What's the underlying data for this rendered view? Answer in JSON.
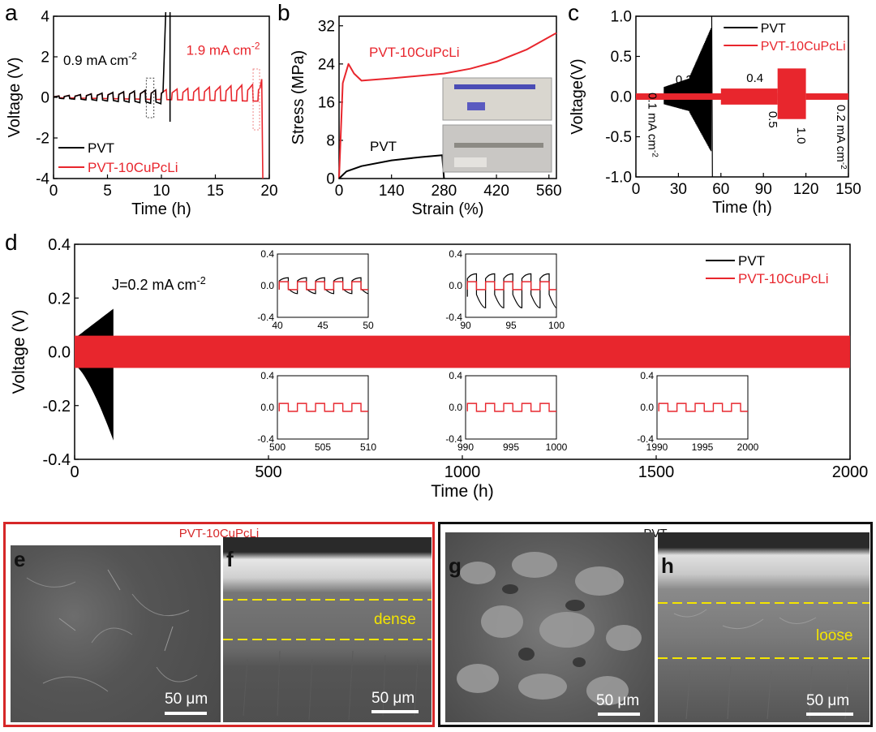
{
  "panels": {
    "a": {
      "letter": "a",
      "xlabel": "Time (h)",
      "ylabel": "Voltage (V)",
      "xticks": [
        "0",
        "5",
        "10",
        "15",
        "20"
      ],
      "yticks": [
        "4",
        "2",
        "0",
        "-2",
        "-4"
      ],
      "annot_black": "0.9 mA cm",
      "annot_black_sup": "-2",
      "annot_red": "1.9 mA cm",
      "annot_red_sup": "-2",
      "legend": [
        "PVT",
        "PVT-10CuPcLi"
      ]
    },
    "b": {
      "letter": "b",
      "xlabel": "Strain (%)",
      "ylabel": "Stress (MPa)",
      "xticks": [
        "0",
        "140",
        "280",
        "420",
        "560"
      ],
      "yticks": [
        "32",
        "24",
        "16",
        "8",
        "0"
      ],
      "label_red": "PVT-10CuPcLi",
      "label_black": "PVT"
    },
    "c": {
      "letter": "c",
      "xlabel": "Time (h)",
      "ylabel": "Voltage(V)",
      "xticks": [
        "0",
        "30",
        "60",
        "90",
        "120",
        "150"
      ],
      "yticks": [
        "1.0",
        "0.5",
        "0.0",
        "-0.5",
        "-1.0"
      ],
      "legend": [
        "PVT",
        "PVT-10CuPcLi"
      ],
      "annots": [
        "0.1 mA cm",
        "0.2",
        "0.3",
        "0.4",
        "0.5",
        "1.0",
        "0.2 mA cm"
      ],
      "annot_sup": "-2"
    },
    "d": {
      "letter": "d",
      "xlabel": "Time (h)",
      "ylabel": "Voltage (V)",
      "xticks": [
        "0",
        "500",
        "1000",
        "1500",
        "2000"
      ],
      "yticks": [
        "0.4",
        "0.2",
        "0.0",
        "-0.2",
        "-0.4"
      ],
      "annot": "J=0.2 mA cm",
      "annot_sup": "-2",
      "legend": [
        "PVT",
        "PVT-10CuPcLi"
      ],
      "inset_yticks": [
        "0.4",
        "0.0",
        "-0.4"
      ],
      "insets": [
        {
          "xticks": [
            "40",
            "45",
            "50"
          ]
        },
        {
          "xticks": [
            "90",
            "95",
            "100"
          ]
        },
        {
          "xticks": [
            "500",
            "505",
            "510"
          ]
        },
        {
          "xticks": [
            "990",
            "995",
            "1000"
          ]
        },
        {
          "xticks": [
            "1990",
            "1995",
            "2000"
          ]
        }
      ]
    }
  },
  "sem": {
    "left_title": "PVT-10CuPcLi",
    "right_title": "PVT",
    "left_color": "#d62728",
    "right_color": "#111111",
    "e": {
      "letter": "e",
      "scale": "50 μm"
    },
    "f": {
      "letter": "f",
      "scale": "50 μm",
      "layer": "dense"
    },
    "g": {
      "letter": "g",
      "scale": "50 μm"
    },
    "h": {
      "letter": "h",
      "scale": "50 μm",
      "layer": "loose"
    }
  },
  "chart_data": [
    {
      "type": "line",
      "title": "",
      "xlabel": "Time (h)",
      "ylabel": "Voltage (V)",
      "xlim": [
        0,
        20
      ],
      "ylim": [
        -4,
        4
      ],
      "series": [
        {
          "name": "PVT",
          "color": "#000000",
          "x": [
            0,
            2,
            4,
            6,
            8,
            9,
            10,
            10.6
          ],
          "y": [
            0.05,
            0.1,
            0.15,
            0.2,
            0.3,
            0.4,
            0.6,
            4
          ]
        },
        {
          "name": "PVT-10CuPcLi",
          "color": "#e8262d",
          "x": [
            0,
            5,
            10,
            15,
            18,
            19.2,
            19.4
          ],
          "y": [
            0.05,
            0.15,
            0.4,
            0.5,
            0.65,
            0.9,
            -4
          ]
        }
      ],
      "annotations": [
        "0.9 mA cm-2",
        "1.9 mA cm-2"
      ]
    },
    {
      "type": "line",
      "title": "",
      "xlabel": "Strain (%)",
      "ylabel": "Stress (MPa)",
      "xlim": [
        0,
        580
      ],
      "ylim": [
        0,
        34
      ],
      "series": [
        {
          "name": "PVT-10CuPcLi",
          "color": "#e8262d",
          "x": [
            0,
            10,
            25,
            40,
            60,
            140,
            280,
            350,
            420,
            500,
            580
          ],
          "y": [
            0,
            20,
            24,
            22,
            20.5,
            21,
            22,
            23,
            24.5,
            27,
            30.5
          ]
        },
        {
          "name": "PVT",
          "color": "#000000",
          "x": [
            0,
            20,
            60,
            140,
            220,
            275,
            280
          ],
          "y": [
            0,
            1.5,
            2.6,
            3.8,
            4.5,
            4.9,
            0
          ]
        }
      ]
    },
    {
      "type": "line",
      "title": "",
      "xlabel": "Time (h)",
      "ylabel": "Voltage(V)",
      "xlim": [
        0,
        150
      ],
      "ylim": [
        -1.0,
        1.0
      ],
      "series": [
        {
          "name": "PVT",
          "color": "#000000",
          "x": [
            0,
            20,
            40,
            53,
            54
          ],
          "y": [
            0.03,
            0.1,
            0.25,
            0.6,
            -1.0
          ]
        },
        {
          "name": "PVT-10CuPcLi",
          "color": "#e8262d",
          "x": [
            0,
            30,
            60,
            100,
            120,
            150
          ],
          "y": [
            0.02,
            0.05,
            0.08,
            0.1,
            0.35,
            0.05
          ]
        }
      ],
      "annotations": [
        "0.1 mA cm-2",
        "0.2",
        "0.3",
        "0.4",
        "0.5",
        "1.0",
        "0.2 mA cm-2"
      ]
    },
    {
      "type": "area",
      "title": "",
      "xlabel": "Time (h)",
      "ylabel": "Voltage (V)",
      "xlim": [
        0,
        2000
      ],
      "ylim": [
        -0.4,
        0.4
      ],
      "series": [
        {
          "name": "PVT",
          "color": "#000000",
          "x": [
            0,
            100
          ],
          "y_upper": [
            0.05,
            0.16
          ],
          "y_lower": [
            -0.05,
            -0.33
          ]
        },
        {
          "name": "PVT-10CuPcLi",
          "color": "#e8262d",
          "x": [
            0,
            2000
          ],
          "y_upper": [
            0.06,
            0.06
          ],
          "y_lower": [
            -0.06,
            -0.06
          ]
        }
      ],
      "annotations": [
        "J=0.2 mA cm-2"
      ]
    }
  ]
}
